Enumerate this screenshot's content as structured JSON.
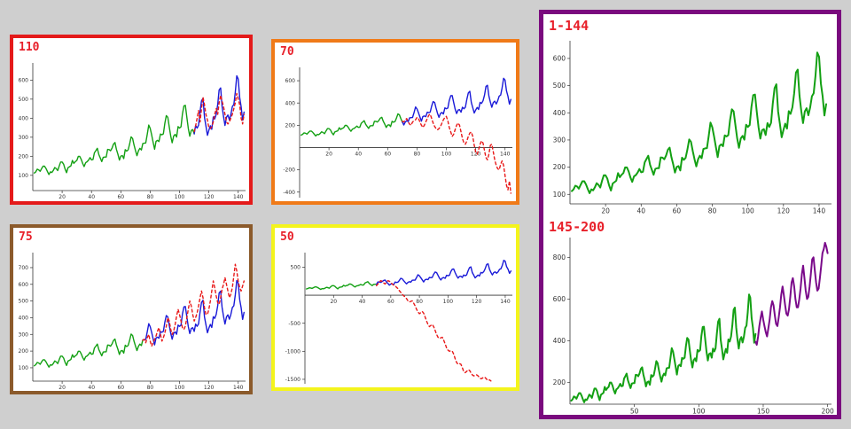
{
  "colors": {
    "background": "#cfcfcf",
    "known": "#13a013",
    "actual": "#1a1ad8",
    "forecast_extension": "#7a0a8a",
    "prediction": "#e81818",
    "title": "#e8202a"
  },
  "panels": [
    {
      "id": "p110",
      "title": "110",
      "border": "#e41a1a"
    },
    {
      "id": "p70",
      "title": "70",
      "border": "#f07a18"
    },
    {
      "id": "p75",
      "title": "75",
      "border": "#8b5a2b"
    },
    {
      "id": "p50",
      "title": "50",
      "border": "#f4f41c"
    },
    {
      "id": "pbig",
      "title": "1-144",
      "subtitle": "145-200",
      "border": "#7a0a7e"
    }
  ],
  "chart_data": [
    {
      "panel": "110",
      "type": "line",
      "xlim": [
        0,
        145
      ],
      "ylim": [
        20,
        690
      ],
      "xticks": [
        20,
        40,
        60,
        80,
        100,
        120,
        140
      ],
      "yticks": [
        100,
        200,
        300,
        400,
        500,
        600
      ],
      "segments": [
        {
          "role": "known",
          "x_range": [
            1,
            110
          ]
        },
        {
          "role": "actual",
          "x_range": [
            110,
            144
          ]
        },
        {
          "role": "prediction",
          "x_range": [
            110,
            144
          ],
          "dashed": true,
          "values": [
            330,
            360,
            400,
            440,
            380,
            450,
            510,
            470,
            420,
            390,
            350,
            345,
            355,
            380,
            420,
            450,
            420,
            480,
            520,
            490,
            460,
            420,
            380,
            370,
            380,
            400,
            420,
            450,
            480,
            530,
            500,
            470,
            400,
            370,
            420
          ]
        }
      ]
    },
    {
      "panel": "70",
      "type": "line",
      "xlim": [
        0,
        145
      ],
      "ylim": [
        -450,
        720
      ],
      "xticks": [
        20,
        40,
        60,
        80,
        100,
        120,
        140
      ],
      "yticks": [
        -400,
        -200,
        200,
        400,
        600
      ],
      "segments": [
        {
          "role": "known",
          "x_range": [
            1,
            70
          ]
        },
        {
          "role": "actual",
          "x_range": [
            70,
            144
          ]
        },
        {
          "role": "prediction",
          "x_range": [
            70,
            144
          ],
          "dashed": true,
          "values": [
            235,
            230,
            250,
            260,
            230,
            210,
            200,
            230,
            240,
            250,
            270,
            260,
            230,
            200,
            180,
            200,
            230,
            260,
            290,
            300,
            260,
            220,
            190,
            170,
            160,
            170,
            190,
            220,
            250,
            270,
            280,
            240,
            180,
            140,
            100,
            120,
            160,
            200,
            220,
            200,
            140,
            80,
            40,
            30,
            60,
            100,
            130,
            140,
            100,
            20,
            -40,
            -60,
            -20,
            30,
            60,
            40,
            -30,
            -90,
            -110,
            -60,
            20,
            30,
            -40,
            -110,
            -160,
            -190,
            -200,
            -150,
            -120,
            -160,
            -250,
            -340,
            -380,
            -300,
            -410
          ]
        }
      ]
    },
    {
      "panel": "75",
      "type": "line",
      "xlim": [
        0,
        145
      ],
      "ylim": [
        20,
        790
      ],
      "xticks": [
        20,
        40,
        60,
        80,
        100,
        120,
        140
      ],
      "yticks": [
        100,
        200,
        300,
        400,
        500,
        600,
        700
      ],
      "segments": [
        {
          "role": "known",
          "x_range": [
            1,
            75
          ]
        },
        {
          "role": "actual",
          "x_range": [
            75,
            144
          ]
        },
        {
          "role": "prediction",
          "x_range": [
            75,
            144
          ],
          "dashed": true,
          "values": [
            265,
            270,
            250,
            280,
            300,
            260,
            230,
            250,
            270,
            290,
            320,
            340,
            300,
            260,
            280,
            310,
            350,
            400,
            380,
            330,
            300,
            320,
            360,
            410,
            450,
            420,
            380,
            340,
            330,
            350,
            400,
            450,
            500,
            470,
            420,
            380,
            400,
            430,
            470,
            520,
            560,
            520,
            460,
            420,
            420,
            450,
            500,
            560,
            620,
            580,
            530,
            490,
            480,
            520,
            570,
            600,
            640,
            600,
            560,
            520,
            540,
            580,
            650,
            720,
            680,
            620,
            580,
            560,
            590,
            620
          ]
        }
      ]
    },
    {
      "panel": "50",
      "type": "line",
      "xlim": [
        0,
        145
      ],
      "ylim": [
        -1580,
        760
      ],
      "xticks": [
        20,
        40,
        60,
        80,
        100,
        120,
        140
      ],
      "yticks": [
        -1500,
        -1000,
        -500,
        500
      ],
      "segments": [
        {
          "role": "known",
          "x_range": [
            1,
            50
          ]
        },
        {
          "role": "actual",
          "x_range": [
            50,
            144
          ]
        },
        {
          "role": "prediction",
          "x_range": [
            50,
            130
          ],
          "dashed": true,
          "values": [
            170,
            200,
            230,
            260,
            250,
            220,
            200,
            230,
            260,
            250,
            230,
            200,
            180,
            170,
            140,
            120,
            80,
            50,
            20,
            -10,
            -30,
            -60,
            -100,
            -120,
            -110,
            -100,
            -140,
            -190,
            -250,
            -300,
            -330,
            -310,
            -290,
            -320,
            -390,
            -460,
            -520,
            -560,
            -540,
            -520,
            -560,
            -630,
            -700,
            -750,
            -770,
            -760,
            -750,
            -800,
            -870,
            -940,
            -980,
            -1000,
            -990,
            -1000,
            -1050,
            -1130,
            -1200,
            -1230,
            -1220,
            -1230,
            -1290,
            -1360,
            -1380,
            -1360,
            -1330,
            -1340,
            -1380,
            -1420,
            -1440,
            -1430,
            -1420,
            -1440,
            -1470,
            -1490,
            -1480,
            -1460,
            -1470,
            -1500,
            -1520,
            -1510,
            -1530
          ]
        }
      ]
    },
    {
      "panel": "1-144",
      "type": "line",
      "xlim": [
        0,
        147
      ],
      "ylim": [
        65,
        665
      ],
      "xticks": [
        20,
        40,
        60,
        80,
        100,
        120,
        140
      ],
      "yticks": [
        100,
        200,
        300,
        400,
        500,
        600
      ],
      "segments": [
        {
          "role": "known",
          "x_range": [
            1,
            144
          ]
        }
      ]
    },
    {
      "panel": "145-200",
      "type": "line",
      "xlim": [
        0,
        203
      ],
      "ylim": [
        95,
        895
      ],
      "xticks": [
        50,
        100,
        150,
        200
      ],
      "yticks": [
        200,
        400,
        600,
        800
      ],
      "segments": [
        {
          "role": "known",
          "x_range": [
            1,
            144
          ]
        },
        {
          "role": "forecast_extension",
          "x_range": [
            144,
            200
          ],
          "values": [
            395,
            380,
            420,
            470,
            510,
            540,
            500,
            470,
            440,
            420,
            460,
            500,
            560,
            590,
            570,
            520,
            480,
            470,
            510,
            560,
            620,
            660,
            620,
            570,
            530,
            520,
            550,
            610,
            680,
            700,
            660,
            600,
            560,
            560,
            600,
            650,
            720,
            760,
            700,
            640,
            600,
            610,
            660,
            720,
            790,
            800,
            740,
            680,
            640,
            650,
            700,
            760,
            820,
            840,
            870,
            850,
            820
          ]
        }
      ]
    }
  ],
  "airline_passengers": [
    112,
    118,
    132,
    129,
    121,
    135,
    148,
    148,
    136,
    119,
    104,
    118,
    115,
    126,
    141,
    135,
    125,
    149,
    170,
    170,
    158,
    133,
    114,
    140,
    145,
    150,
    178,
    163,
    172,
    178,
    199,
    199,
    184,
    162,
    146,
    166,
    171,
    180,
    193,
    181,
    183,
    218,
    230,
    242,
    209,
    191,
    172,
    194,
    196,
    196,
    236,
    235,
    229,
    243,
    264,
    272,
    237,
    211,
    180,
    201,
    204,
    188,
    235,
    227,
    234,
    264,
    302,
    293,
    259,
    229,
    203,
    229,
    242,
    233,
    267,
    269,
    270,
    315,
    364,
    347,
    312,
    274,
    237,
    278,
    284,
    277,
    317,
    313,
    318,
    374,
    413,
    405,
    355,
    306,
    271,
    306,
    315,
    301,
    356,
    348,
    355,
    422,
    465,
    467,
    404,
    347,
    305,
    336,
    340,
    318,
    362,
    348,
    363,
    435,
    491,
    505,
    404,
    359,
    310,
    337,
    360,
    342,
    406,
    396,
    420,
    472,
    548,
    559,
    463,
    407,
    362,
    405,
    417,
    391,
    419,
    461,
    472,
    535,
    622,
    606,
    508,
    461,
    390,
    432
  ]
}
